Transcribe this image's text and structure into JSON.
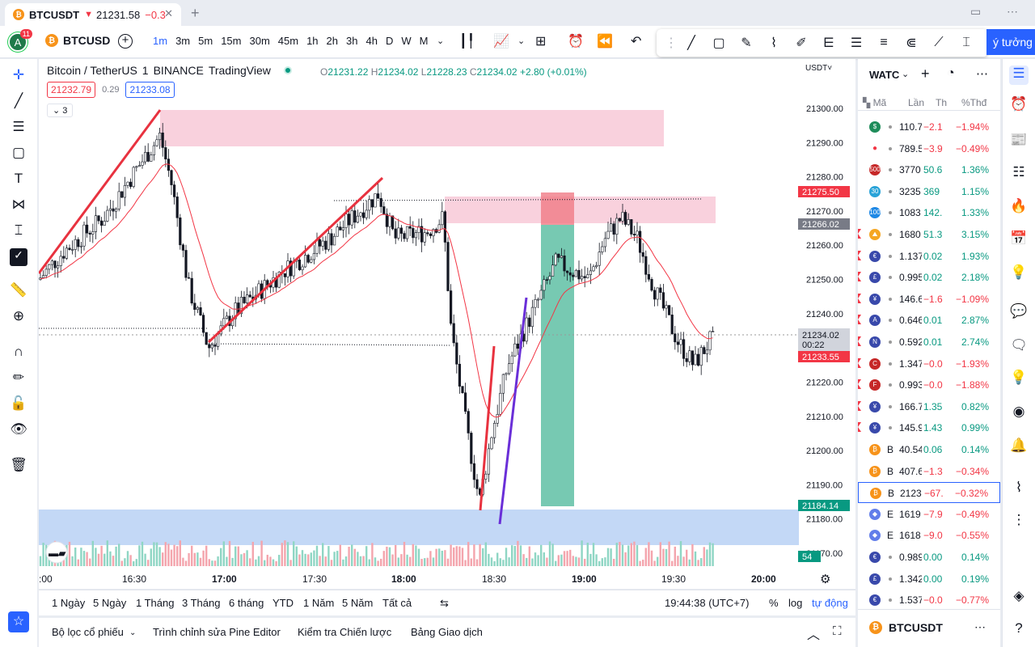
{
  "browser_tab": {
    "symbol": "BTCUSDT",
    "arrow": "▼",
    "price": "21231.58",
    "change": "−0.3",
    "close": "✕",
    "new_tab": "+"
  },
  "topbar": {
    "avatar_letter": "A",
    "avatar_badge": "11",
    "symbol": "BTCUSD",
    "intervals": [
      "1m",
      "3m",
      "5m",
      "15m",
      "30m",
      "45m",
      "1h",
      "2h",
      "3h",
      "4h",
      "D",
      "W",
      "M"
    ],
    "active_interval": "1m",
    "ideas_label": "ý tưởng"
  },
  "legend": {
    "title": "Bitcoin / TetherUS",
    "interval": "1",
    "exchange": "BINANCE",
    "source": "TradingView",
    "open": "21231.22",
    "high": "21234.02",
    "low": "21228.23",
    "close": "21234.02",
    "change": "+2.80 (+0.01%)",
    "bid": "21232.79",
    "spread": "0.29",
    "ask": "21233.08",
    "collapse_count": "3"
  },
  "price_axis": {
    "currency": "USDT",
    "ticks": [
      "21300.00",
      "21290.00",
      "21280.00",
      "21270.00",
      "21260.00",
      "21250.00",
      "21240.00",
      "21230.00",
      "21220.00",
      "21210.00",
      "21200.00",
      "21190.00",
      "21180.00",
      "21170.00"
    ],
    "labels": {
      "red_top": "21275.50",
      "gray": "21266.02",
      "current": "21234.02",
      "countdown": "00:22",
      "red_bottom": "21233.55",
      "green": "21184.14",
      "volume": "54"
    }
  },
  "time_axis": {
    "ticks": [
      ":00",
      "16:30",
      "17:00",
      "17:30",
      "18:00",
      "18:30",
      "19:00",
      "19:30",
      "20:00"
    ]
  },
  "range_bar": {
    "ranges": [
      "1 Ngày",
      "5 Ngày",
      "1 Tháng",
      "3 Tháng",
      "6 tháng",
      "YTD",
      "1 Năm",
      "5 Năm",
      "Tất cả"
    ],
    "clock": "19:44:38 (UTC+7)",
    "percent": "%",
    "log": "log",
    "auto": "tự động"
  },
  "bottom_panel": {
    "tabs": [
      "Bộ lọc cổ phiếu",
      "Trình chỉnh sửa Pine Editor",
      "Kiểm tra Chiến lược",
      "Bảng Giao dịch"
    ]
  },
  "watchlist": {
    "title": "WATC",
    "columns": {
      "symbol": "Mã",
      "last": "Lần",
      "change": "Th",
      "pct": "%Thđ"
    },
    "rows": [
      {
        "icon": "$",
        "color": "#1e8c5a",
        "name": "",
        "last": "110.7",
        "ch": "−2.1",
        "pct": "−1.94%",
        "dir": "dn",
        "flag": false
      },
      {
        "icon": "●",
        "color": "#ffffff",
        "name": "",
        "last": "789.5",
        "ch": "−3.9",
        "pct": "−0.49%",
        "dir": "dn",
        "flag": false
      },
      {
        "icon": "500",
        "color": "#c62828",
        "name": "",
        "last": "3770",
        "ch": "50.6",
        "pct": "1.36%",
        "dir": "up",
        "flag": false
      },
      {
        "icon": "30",
        "color": "#29a3d8",
        "name": "",
        "last": "3235",
        "ch": "369",
        "pct": "1.15%",
        "dir": "up",
        "flag": false
      },
      {
        "icon": "100",
        "color": "#1e88e5",
        "name": "",
        "last": "1083",
        "ch": "142.",
        "pct": "1.33%",
        "dir": "up",
        "flag": false
      },
      {
        "icon": "⛰",
        "color": "#f5a623",
        "name": "",
        "last": "1680",
        "ch": "51.3",
        "pct": "3.15%",
        "dir": "up",
        "flag": true
      },
      {
        "icon": "€",
        "color": "#3949ab",
        "name": "",
        "last": "1.137",
        "ch": "0.02",
        "pct": "1.93%",
        "dir": "up",
        "flag": true
      },
      {
        "icon": "£",
        "color": "#3949ab",
        "name": "",
        "last": "0.995",
        "ch": "0.02",
        "pct": "2.18%",
        "dir": "up",
        "flag": true
      },
      {
        "icon": "¥",
        "color": "#3949ab",
        "name": "",
        "last": "146.6",
        "ch": "−1.6",
        "pct": "−1.09%",
        "dir": "dn",
        "flag": true
      },
      {
        "icon": "A",
        "color": "#3949ab",
        "name": "",
        "last": "0.646",
        "ch": "0.01",
        "pct": "2.87%",
        "dir": "up",
        "flag": true
      },
      {
        "icon": "N",
        "color": "#3949ab",
        "name": "",
        "last": "0.592",
        "ch": "0.01",
        "pct": "2.74%",
        "dir": "up",
        "flag": true
      },
      {
        "icon": "C",
        "color": "#c62828",
        "name": "",
        "last": "1.347",
        "ch": "−0.0",
        "pct": "−1.93%",
        "dir": "dn",
        "flag": true
      },
      {
        "icon": "F",
        "color": "#c62828",
        "name": "",
        "last": "0.993",
        "ch": "−0.0",
        "pct": "−1.88%",
        "dir": "dn",
        "flag": true
      },
      {
        "icon": "¥",
        "color": "#3949ab",
        "name": "",
        "last": "166.7",
        "ch": "1.35",
        "pct": "0.82%",
        "dir": "up",
        "flag": true
      },
      {
        "icon": "¥",
        "color": "#3949ab",
        "name": "",
        "last": "145.9",
        "ch": "1.43",
        "pct": "0.99%",
        "dir": "up",
        "flag": true
      },
      {
        "icon": "₿",
        "color": "#f7931a",
        "name": "B",
        "last": "40.54",
        "ch": "0.06",
        "pct": "0.14%",
        "dir": "up",
        "flag": false
      },
      {
        "icon": "₿",
        "color": "#f7931a",
        "name": "B",
        "last": "407.6",
        "ch": "−1.3",
        "pct": "−0.34%",
        "dir": "dn",
        "flag": false
      },
      {
        "icon": "₿",
        "color": "#f7931a",
        "name": "B",
        "last": "2123",
        "ch": "−67.",
        "pct": "−0.32%",
        "dir": "dn",
        "flag": false,
        "selected": true
      },
      {
        "icon": "◆",
        "color": "#627eea",
        "name": "E",
        "last": "1619",
        "ch": "−7.9",
        "pct": "−0.49%",
        "dir": "dn",
        "flag": false
      },
      {
        "icon": "◆",
        "color": "#627eea",
        "name": "E",
        "last": "1618",
        "ch": "−9.0",
        "pct": "−0.55%",
        "dir": "dn",
        "flag": false
      },
      {
        "icon": "€",
        "color": "#3949ab",
        "name": "",
        "last": "0.989",
        "ch": "0.00",
        "pct": "0.14%",
        "dir": "up",
        "flag": false
      },
      {
        "icon": "£",
        "color": "#3949ab",
        "name": "",
        "last": "1.342",
        "ch": "0.00",
        "pct": "0.19%",
        "dir": "up",
        "flag": false
      },
      {
        "icon": "€",
        "color": "#3949ab",
        "name": "",
        "last": "1.537",
        "ch": "−0.0",
        "pct": "−0.77%",
        "dir": "dn",
        "flag": false
      }
    ],
    "footer_symbol": "BTCUSDT"
  },
  "colors": {
    "up": "#089981",
    "down": "#f23645",
    "accent": "#2962ff",
    "candle_up": "#ffffff",
    "candle_down": "#000000"
  }
}
